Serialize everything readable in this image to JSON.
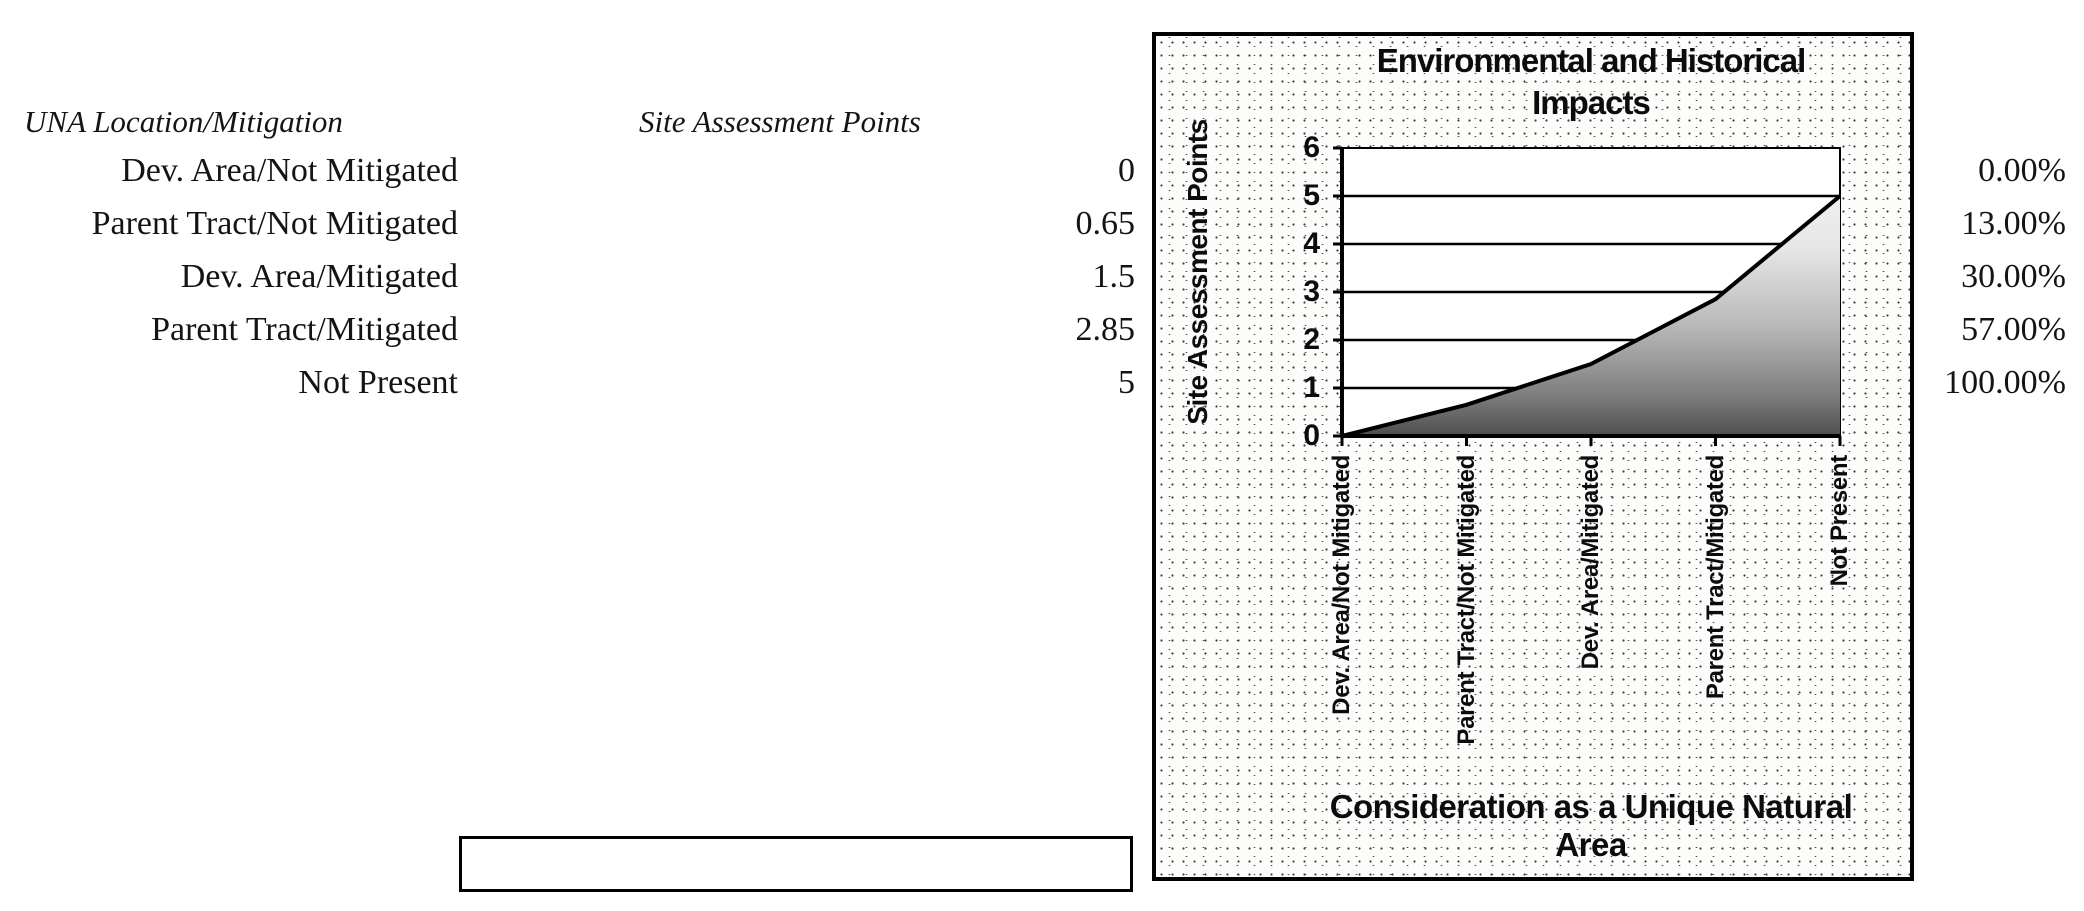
{
  "page": {
    "background": "#ffffff",
    "ink": "#141414"
  },
  "table": {
    "location_header": "UNA Location/Mitigation",
    "points_header": "Site Assessment Points",
    "rows": [
      {
        "label": "Dev. Area/Not Mitigated",
        "points": "0",
        "percent": "0.00%"
      },
      {
        "label": "Parent Tract/Not Mitigated",
        "points": "0.65",
        "percent": "13.00%"
      },
      {
        "label": "Dev. Area/Mitigated",
        "points": "1.5",
        "percent": "30.00%"
      },
      {
        "label": "Parent Tract/Mitigated",
        "points": "2.85",
        "percent": "57.00%"
      },
      {
        "label": "Not Present",
        "points": "5",
        "percent": "100.00%"
      }
    ]
  },
  "footer_box": {
    "text": ""
  },
  "chart_data": {
    "type": "area",
    "title": "Environmental and Historical Impacts",
    "xlabel": "Consideration as a Unique Natural Area",
    "ylabel": "Site Assessment Points",
    "categories": [
      "Dev. Area/Not Mitigated",
      "Parent Tract/Not Mitigated",
      "Dev. Area/Mitigated",
      "Parent Tract/Mitigated",
      "Not Present"
    ],
    "values": [
      0,
      0.65,
      1.5,
      2.85,
      5
    ],
    "ylim": [
      0,
      6
    ],
    "yticks": [
      0,
      1,
      2,
      3,
      4,
      5,
      6
    ],
    "grid": true,
    "legend": "none",
    "line_color": "#000000",
    "area_fill": {
      "top": "#f8f8f8",
      "bottom": "#4e4e4e"
    }
  }
}
